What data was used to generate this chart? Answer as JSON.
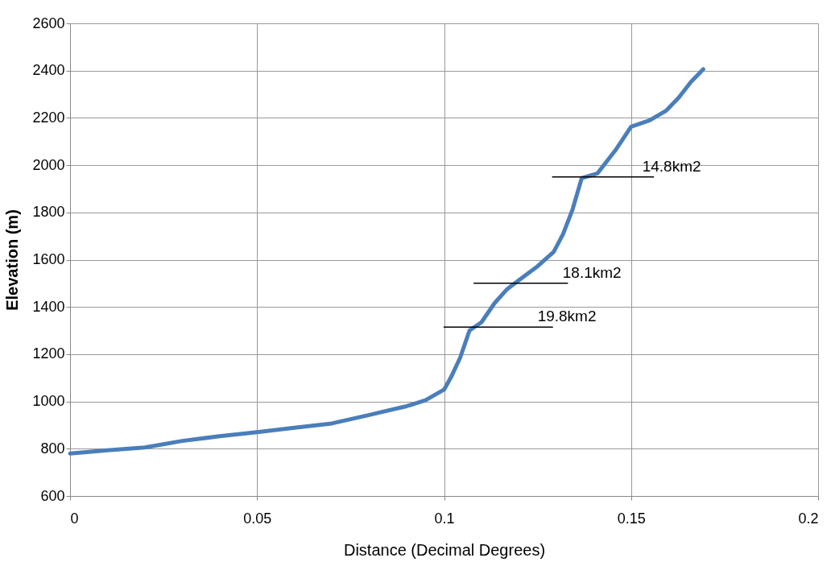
{
  "chart_data": {
    "type": "line",
    "xlabel": "Distance (Decimal Degrees)",
    "ylabel": "Elevation (m)",
    "xlim": [
      0,
      0.2
    ],
    "xticks": [
      0,
      0.05,
      0.1,
      0.15,
      0.2
    ],
    "ylim": [
      600,
      2600
    ],
    "yticks": [
      600,
      800,
      1000,
      1200,
      1400,
      1600,
      1800,
      2000,
      2200,
      2400,
      2600
    ],
    "grid": true,
    "marker": "none",
    "line_style": "solid",
    "series": [
      {
        "color": "#4a7ebb",
        "x": [
          0,
          0.01,
          0.02,
          0.03,
          0.04,
          0.05,
          0.06,
          0.07,
          0.08,
          0.09,
          0.095,
          0.1,
          0.1019,
          0.1043,
          0.1068,
          0.11,
          0.1135,
          0.1169,
          0.121,
          0.125,
          0.1293,
          0.1318,
          0.1343,
          0.1368,
          0.141,
          0.146,
          0.15,
          0.155,
          0.1594,
          0.1627,
          0.166,
          0.1693
        ],
        "values": [
          780,
          793,
          805,
          833,
          853,
          870,
          889,
          907,
          943,
          980,
          1005,
          1050,
          1104,
          1185,
          1300,
          1335,
          1416,
          1476,
          1525,
          1572,
          1633,
          1708,
          1810,
          1945,
          1965,
          2067,
          2163,
          2190,
          2231,
          2285,
          2352,
          2406
        ]
      },
      {
        "color": "#000000",
        "x": [
          0.129,
          0.156
        ],
        "values": [
          1950,
          1950
        ]
      },
      {
        "color": "#000000",
        "x": [
          0.108,
          0.133
        ],
        "values": [
          1500,
          1500
        ]
      },
      {
        "color": "#000000",
        "x": [
          0.1,
          0.129
        ],
        "values": [
          1315,
          1315
        ]
      }
    ],
    "annotations": [
      {
        "text": "14.8km2",
        "x": 0.153,
        "y": 1950
      },
      {
        "text": "18.1km2",
        "x": 0.1317,
        "y": 1500
      },
      {
        "text": "19.8km2",
        "x": 0.125,
        "y": 1315
      }
    ]
  }
}
